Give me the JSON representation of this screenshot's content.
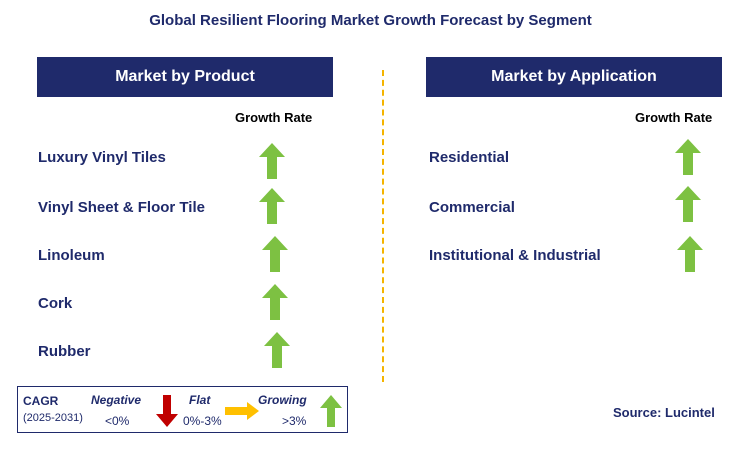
{
  "title": "Global Resilient Flooring Market Growth Forecast by Segment",
  "product": {
    "header": "Market by Product",
    "column_label": "Growth Rate",
    "rows": [
      {
        "label": "Luxury Vinyl Tiles",
        "trend": "growing"
      },
      {
        "label": "Vinyl Sheet & Floor Tile",
        "trend": "growing"
      },
      {
        "label": "Linoleum",
        "trend": "growing"
      },
      {
        "label": "Cork",
        "trend": "growing"
      },
      {
        "label": "Rubber",
        "trend": "growing"
      }
    ]
  },
  "application": {
    "header": "Market by Application",
    "column_label": "Growth Rate",
    "rows": [
      {
        "label": "Residential",
        "trend": "growing"
      },
      {
        "label": "Commercial",
        "trend": "growing"
      },
      {
        "label": "Institutional & Industrial",
        "trend": "growing"
      }
    ]
  },
  "legend": {
    "cagr_label": "CAGR",
    "period": "(2025-2031)",
    "negative": {
      "label": "Negative",
      "range": "<0%",
      "icon": "down-arrow-icon",
      "color": "#c00000"
    },
    "flat": {
      "label": "Flat",
      "range": "0%-3%",
      "icon": "right-arrow-icon",
      "color": "#ffc000"
    },
    "growing": {
      "label": "Growing",
      "range": ">3%",
      "icon": "up-arrow-icon",
      "color": "#7dc142"
    }
  },
  "source": "Source: Lucintel",
  "colors": {
    "navy": "#1f2a6b",
    "up_green": "#7dc142",
    "down_red": "#c00000",
    "flat_yellow": "#ffc000",
    "divider": "#f4b400"
  }
}
